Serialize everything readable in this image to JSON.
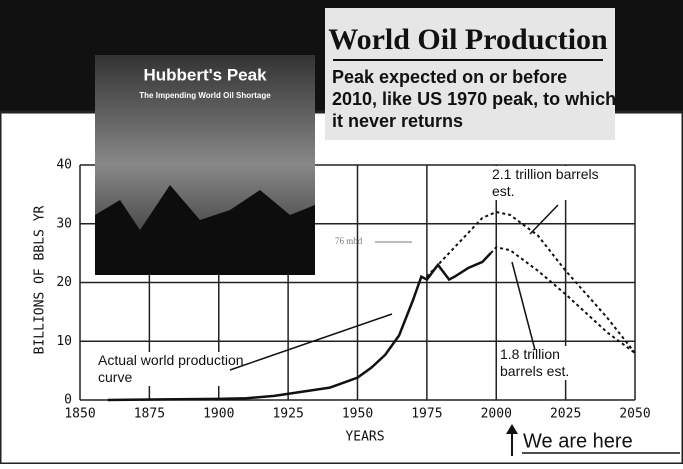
{
  "chart_data": {
    "type": "line",
    "title": "World Oil Production",
    "subtitle": "Peak expected on or before 2010, like US 1970 peak, to which it never returns",
    "book_title": "Hubbert's Peak",
    "book_subtitle": "The Impending World Oil Shortage",
    "x_label": "YEARS",
    "y_label": "BILLIONS OF BBLS YR",
    "annotations": [
      "2.1 trillion barrels est.",
      "1.8 trillion barrels est.",
      "Actual world production curve",
      "76 mbd",
      "We are here"
    ],
    "xlim": [
      1850,
      2050
    ],
    "xticks": [
      1850,
      1875,
      1900,
      1925,
      1950,
      1975,
      2000,
      2025,
      2050
    ],
    "ylim": [
      0,
      40
    ],
    "yticks": [
      0,
      10,
      20,
      30,
      40
    ],
    "grid": true,
    "series": [
      {
        "color": "#111111",
        "dashed": false,
        "x": [
          1860,
          1880,
          1900,
          1910,
          1920,
          1930,
          1940,
          1950,
          1955,
          1960,
          1965,
          1970,
          1973,
          1975,
          1979,
          1983,
          1985,
          1990,
          1995,
          1998
        ],
        "values": [
          0,
          0.1,
          0.2,
          0.3,
          0.7,
          1.4,
          2.1,
          3.8,
          5.5,
          7.7,
          11,
          17,
          21,
          20.5,
          23,
          20.5,
          21,
          22.5,
          23.5,
          25
        ]
      },
      {
        "color": "#111111",
        "dashed": true,
        "x": [
          1975,
          1985,
          1995,
          2000,
          2005,
          2015,
          2025,
          2040,
          2050
        ],
        "values": [
          21,
          26,
          31,
          32,
          31.5,
          28,
          22,
          14,
          8
        ]
      },
      {
        "color": "#111111",
        "dashed": true,
        "x": [
          1998,
          2000,
          2005,
          2015,
          2025,
          2040,
          2050
        ],
        "values": [
          25,
          26,
          25.5,
          22,
          18,
          11.5,
          8
        ]
      }
    ]
  }
}
